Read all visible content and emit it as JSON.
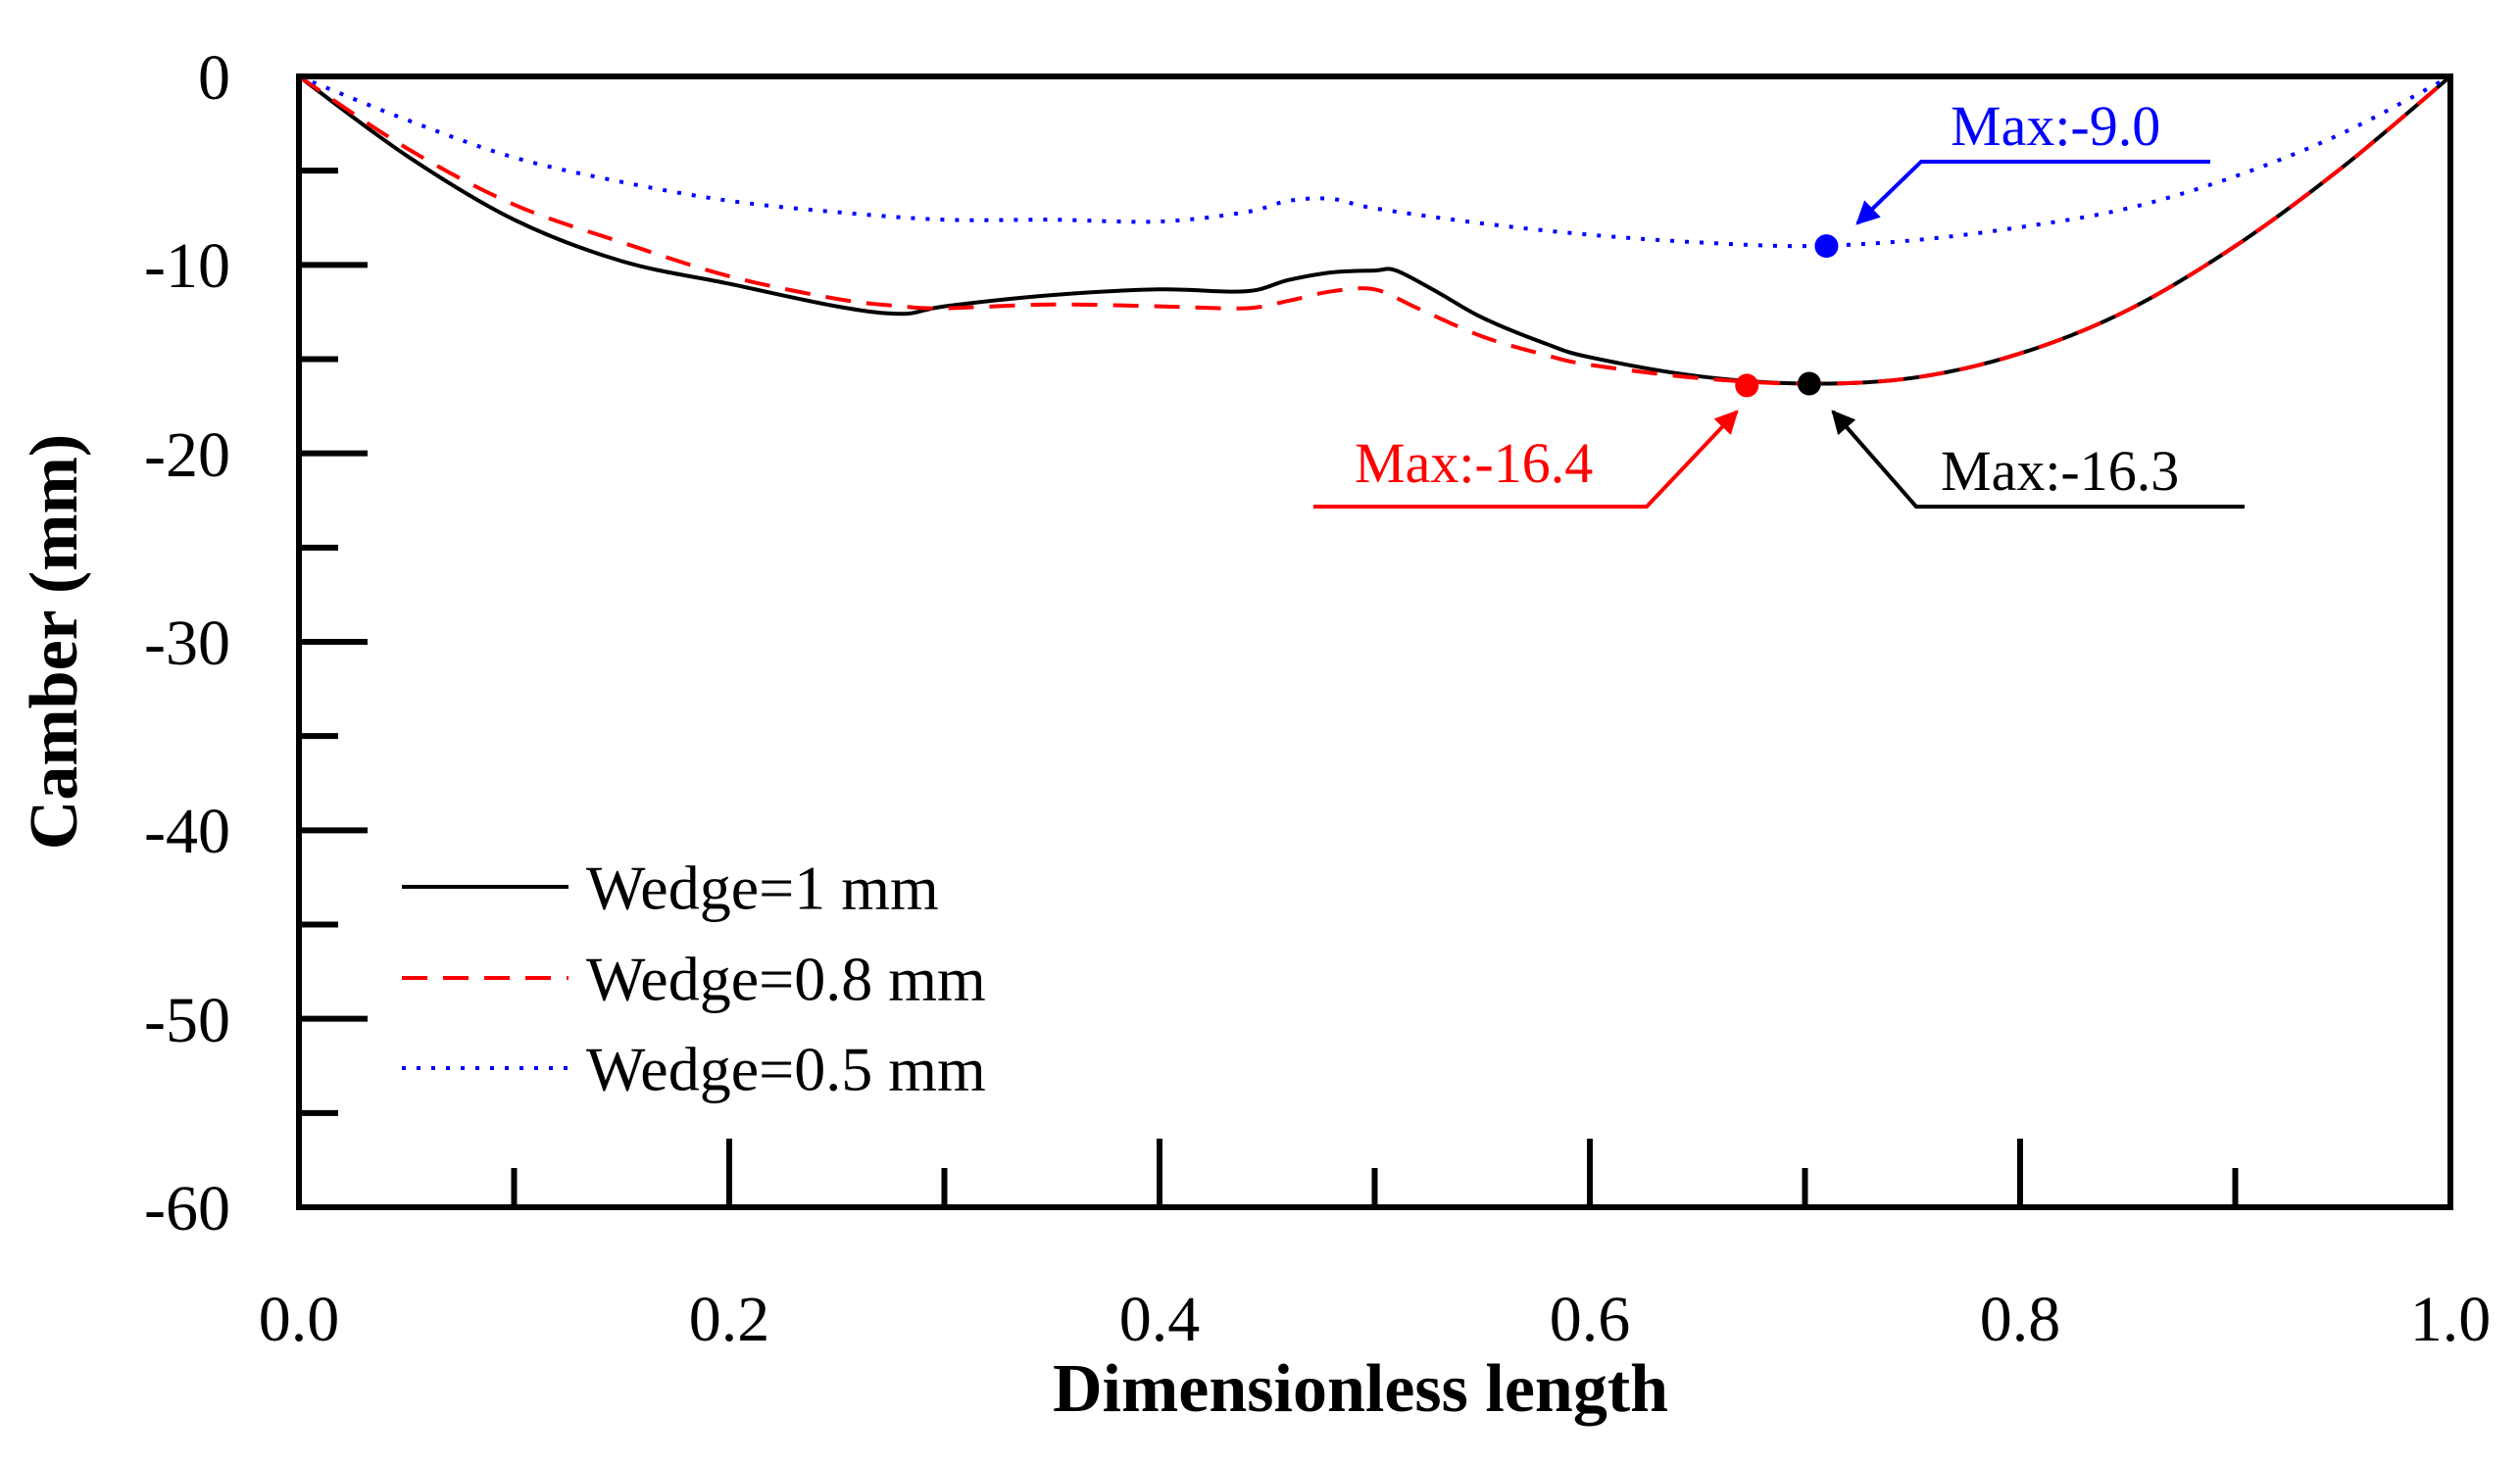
{
  "chart_data": {
    "type": "line",
    "xlabel": "Dimensionless length",
    "ylabel": "Camber (mm)",
    "xlim": [
      0.0,
      1.0
    ],
    "ylim": [
      -60,
      0
    ],
    "x_ticks": [
      0.0,
      0.2,
      0.4,
      0.6,
      0.8,
      1.0
    ],
    "x_tick_labels": [
      "0.0",
      "0.2",
      "0.4",
      "0.6",
      "0.8",
      "1.0"
    ],
    "y_ticks": [
      0,
      -10,
      -20,
      -30,
      -40,
      -50,
      -60
    ],
    "y_tick_labels": [
      "0",
      "-10",
      "-20",
      "-30",
      "-40",
      "-50",
      "-60"
    ],
    "legend_position": "bottom-left",
    "series": [
      {
        "name": "Wedge=1 mm",
        "color": "#000000",
        "style": "solid",
        "x": [
          0.0,
          0.05,
          0.1,
          0.15,
          0.2,
          0.25,
          0.28,
          0.3,
          0.35,
          0.4,
          0.44,
          0.46,
          0.48,
          0.5,
          0.51,
          0.53,
          0.55,
          0.58,
          0.6,
          0.65,
          0.7,
          0.75,
          0.8,
          0.85,
          0.9,
          0.95,
          1.0
        ],
        "y": [
          0.0,
          -4.2,
          -7.6,
          -9.8,
          -11.0,
          -12.2,
          -12.6,
          -12.2,
          -11.6,
          -11.3,
          -11.4,
          -10.8,
          -10.4,
          -10.3,
          -10.3,
          -11.5,
          -12.8,
          -14.2,
          -14.9,
          -15.9,
          -16.3,
          -16.0,
          -14.7,
          -12.4,
          -9.0,
          -4.8,
          0.0
        ]
      },
      {
        "name": "Wedge=0.8 mm",
        "color": "#ff0000",
        "style": "dashed",
        "x": [
          0.0,
          0.05,
          0.1,
          0.15,
          0.2,
          0.25,
          0.28,
          0.3,
          0.35,
          0.4,
          0.44,
          0.46,
          0.48,
          0.5,
          0.52,
          0.55,
          0.58,
          0.6,
          0.65,
          0.7,
          0.75,
          0.8,
          0.85,
          0.9,
          0.95,
          1.0
        ],
        "y": [
          0.0,
          -3.8,
          -6.8,
          -8.8,
          -10.6,
          -11.8,
          -12.2,
          -12.3,
          -12.1,
          -12.2,
          -12.3,
          -11.9,
          -11.4,
          -11.3,
          -12.3,
          -13.8,
          -14.8,
          -15.3,
          -16.0,
          -16.3,
          -16.0,
          -14.7,
          -12.4,
          -9.0,
          -4.8,
          0.0
        ]
      },
      {
        "name": "Wedge=0.5 mm",
        "color": "#0000ff",
        "style": "dotted",
        "x": [
          0.0,
          0.05,
          0.1,
          0.15,
          0.2,
          0.25,
          0.3,
          0.35,
          0.4,
          0.44,
          0.46,
          0.48,
          0.5,
          0.55,
          0.6,
          0.65,
          0.7,
          0.75,
          0.8,
          0.85,
          0.9,
          0.95,
          1.0
        ],
        "y": [
          0.0,
          -2.3,
          -4.3,
          -5.6,
          -6.6,
          -7.2,
          -7.6,
          -7.6,
          -7.7,
          -7.2,
          -6.6,
          -6.5,
          -7.0,
          -7.8,
          -8.4,
          -8.8,
          -9.0,
          -8.7,
          -8.0,
          -7.0,
          -5.3,
          -3.0,
          0.0
        ]
      }
    ],
    "annotations": [
      {
        "text": "Max:-9.0",
        "x": 0.71,
        "y": -9.0,
        "color": "#0000ff"
      },
      {
        "text": "Max:-16.4",
        "x": 0.673,
        "y": -16.4,
        "color": "#ff0000"
      },
      {
        "text": "Max:-16.3",
        "x": 0.702,
        "y": -16.3,
        "color": "#000000"
      }
    ]
  }
}
